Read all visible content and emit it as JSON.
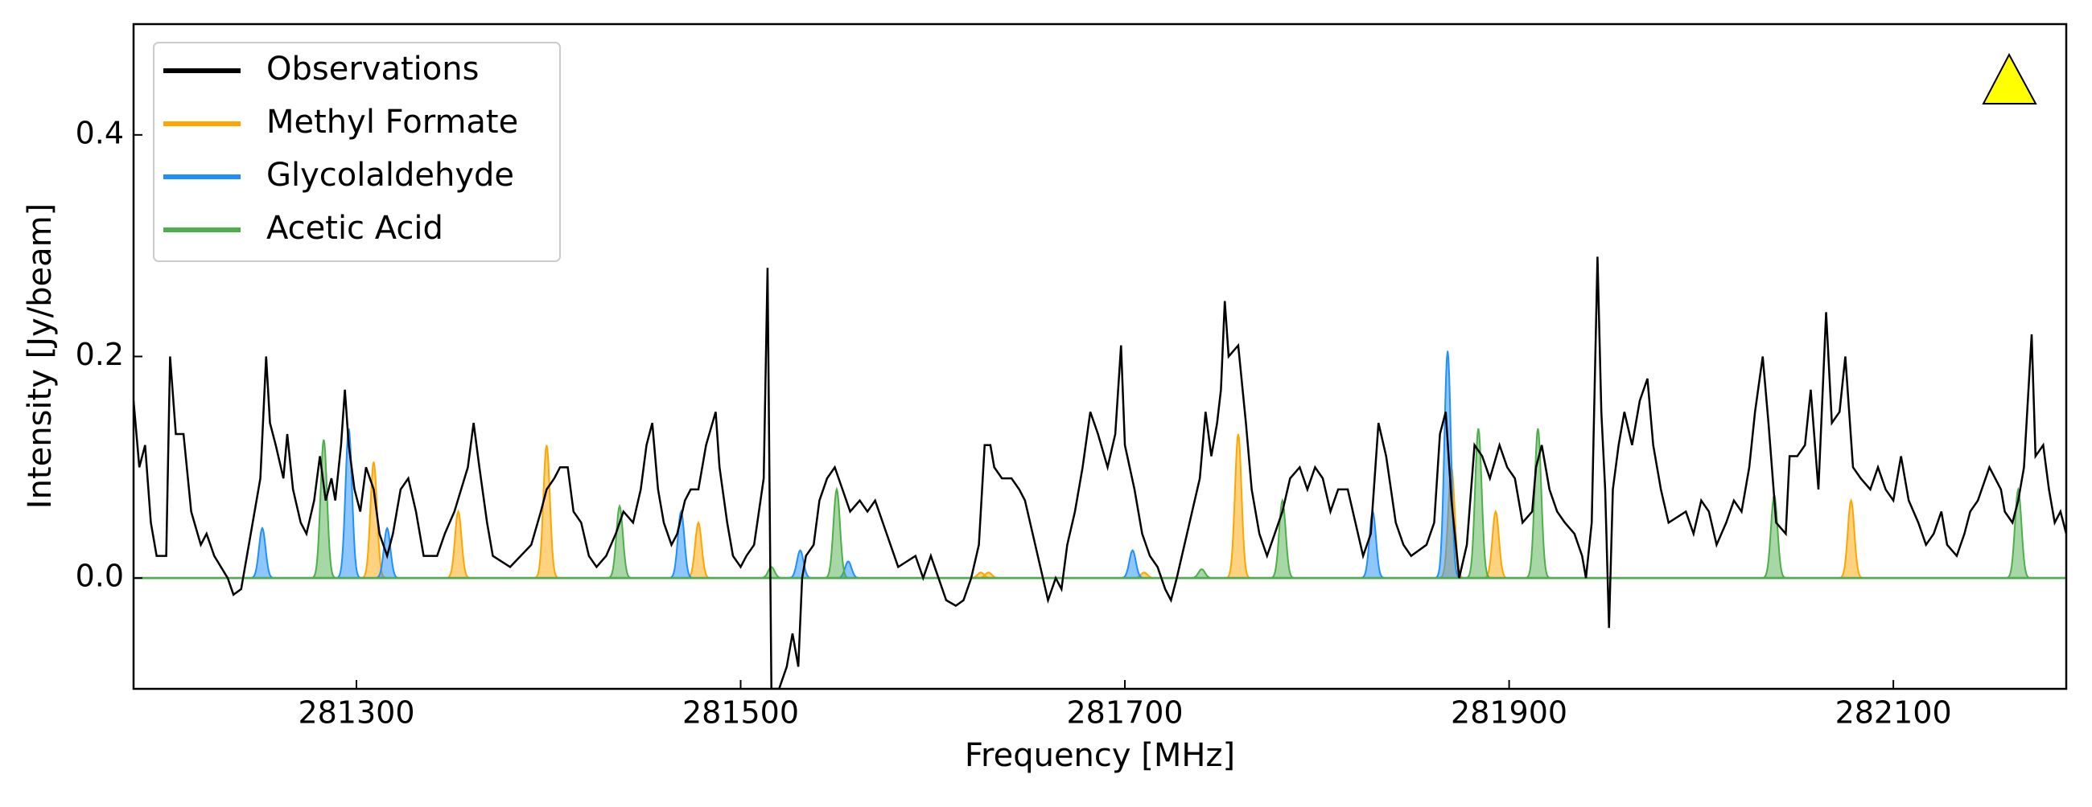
{
  "chart_data": {
    "type": "line",
    "xlabel": "Frequency [MHz]",
    "ylabel": "Intensity [Jy/beam]",
    "xlim": [
      281184,
      282190
    ],
    "ylim": [
      -0.1,
      0.5
    ],
    "xticks": [
      281300,
      281500,
      281700,
      281900,
      282100
    ],
    "yticks": [
      {
        "value": 0,
        "label": "0.0"
      },
      0.2,
      0.4
    ],
    "legend": "upper left",
    "series": [
      {
        "name": "Observations",
        "color": "#000000",
        "x": [
          281184,
          281187,
          281190,
          281193,
          281196,
          281201,
          281203,
          281206,
          281210,
          281214,
          281219,
          281222,
          281226,
          281233,
          281236,
          281240,
          281243,
          281246,
          281250,
          281253,
          281255,
          281258,
          281262,
          281264,
          281267,
          281271,
          281274,
          281278,
          281281,
          281284,
          281287,
          281289,
          281292,
          281294,
          281296,
          281299,
          281302,
          281305,
          281309,
          281312,
          281316,
          281319,
          281323,
          281327,
          281331,
          281335,
          281342,
          281346,
          281351,
          281358,
          281361,
          281364,
          281368,
          281371,
          281380,
          281391,
          281396,
          281399,
          281403,
          281406,
          281410,
          281413,
          281417,
          281421,
          281425,
          281430,
          281435,
          281439,
          281444,
          281448,
          281451,
          281454,
          281457,
          281460,
          281464,
          281467,
          281471,
          281474,
          281478,
          281482,
          281487,
          281489,
          281493,
          281496,
          281500,
          281503,
          281507,
          281512,
          281514,
          281516,
          281520,
          281524,
          281527,
          281530,
          281532,
          281534,
          281538,
          281541,
          281545,
          281549,
          281553,
          281557,
          281562,
          281566,
          281570,
          281574,
          281578,
          281582,
          281591,
          281595,
          281599,
          281603,
          281607,
          281612,
          281616,
          281620,
          281624,
          281627,
          281630,
          281632,
          281636,
          281641,
          281645,
          281648,
          281652,
          281656,
          281660,
          281664,
          281667,
          281670,
          281674,
          281678,
          281682,
          281686,
          281691,
          281695,
          281698,
          281700,
          281705,
          281709,
          281713,
          281717,
          281721,
          281724,
          281727,
          281731,
          281735,
          281739,
          281742,
          281745,
          281748,
          281750,
          281752,
          281754,
          281759,
          281763,
          281766,
          281770,
          281774,
          281778,
          281782,
          281786,
          281791,
          281795,
          281799,
          281803,
          281807,
          281811,
          281816,
          281820,
          281824,
          281828,
          281832,
          281836,
          281841,
          281845,
          281849,
          281857,
          281861,
          281864,
          281867,
          281870,
          281874,
          281878,
          281882,
          281886,
          281890,
          281895,
          281899,
          281903,
          281907,
          281912,
          281914,
          281917,
          281921,
          281925,
          281929,
          281934,
          281938,
          281940,
          281943,
          281946,
          281948,
          281950,
          281952,
          281954,
          281957,
          281960,
          281964,
          281968,
          281972,
          281975,
          281979,
          281983,
          281992,
          281996,
          282000,
          282004,
          282008,
          282013,
          282017,
          282021,
          282025,
          282028,
          282032,
          282035,
          282039,
          282044,
          282046,
          282050,
          282054,
          282057,
          282061,
          282065,
          282068,
          282072,
          282075,
          282079,
          282083,
          282088,
          282092,
          282096,
          282100,
          282104,
          282108,
          282113,
          282117,
          282121,
          282125,
          282128,
          282133,
          282137,
          282140,
          282144,
          282150,
          282156,
          282158,
          282162,
          282165,
          282168,
          282172,
          282174,
          282178,
          282181,
          282184,
          282187,
          282190
        ],
        "values": [
          0.16,
          0.1,
          0.12,
          0.05,
          0.02,
          0.02,
          0.2,
          0.13,
          0.13,
          0.06,
          0.03,
          0.04,
          0.02,
          0.0,
          -0.015,
          -0.01,
          0.02,
          0.05,
          0.09,
          0.2,
          0.14,
          0.12,
          0.09,
          0.13,
          0.08,
          0.05,
          0.04,
          0.07,
          0.11,
          0.07,
          0.09,
          0.07,
          0.12,
          0.17,
          0.12,
          0.08,
          0.06,
          0.1,
          0.08,
          0.04,
          0.02,
          0.04,
          0.08,
          0.09,
          0.06,
          0.02,
          0.02,
          0.04,
          0.06,
          0.1,
          0.14,
          0.1,
          0.05,
          0.02,
          0.01,
          0.03,
          0.06,
          0.08,
          0.09,
          0.1,
          0.1,
          0.06,
          0.05,
          0.02,
          0.01,
          0.02,
          0.04,
          0.06,
          0.05,
          0.08,
          0.12,
          0.14,
          0.08,
          0.05,
          0.03,
          0.04,
          0.07,
          0.08,
          0.08,
          0.12,
          0.15,
          0.1,
          0.05,
          0.02,
          0.01,
          0.02,
          0.03,
          0.09,
          0.28,
          -0.1,
          -0.1,
          -0.08,
          -0.05,
          -0.08,
          0.0,
          0.02,
          0.03,
          0.07,
          0.09,
          0.1,
          0.08,
          0.06,
          0.07,
          0.06,
          0.07,
          0.05,
          0.03,
          0.01,
          0.02,
          0.0,
          0.02,
          0.0,
          -0.02,
          -0.025,
          -0.02,
          0.0,
          0.03,
          0.12,
          0.12,
          0.1,
          0.09,
          0.09,
          0.08,
          0.07,
          0.04,
          0.01,
          -0.02,
          0.0,
          -0.01,
          0.03,
          0.06,
          0.1,
          0.15,
          0.13,
          0.1,
          0.13,
          0.21,
          0.12,
          0.08,
          0.04,
          0.02,
          0.01,
          -0.01,
          -0.02,
          0.0,
          0.03,
          0.06,
          0.09,
          0.15,
          0.11,
          0.14,
          0.17,
          0.25,
          0.2,
          0.21,
          0.14,
          0.08,
          0.04,
          0.02,
          0.04,
          0.06,
          0.09,
          0.1,
          0.08,
          0.1,
          0.09,
          0.06,
          0.08,
          0.08,
          0.05,
          0.02,
          0.04,
          0.14,
          0.11,
          0.05,
          0.03,
          0.02,
          0.03,
          0.05,
          0.13,
          0.15,
          0.07,
          0.0,
          0.03,
          0.12,
          0.11,
          0.09,
          0.12,
          0.1,
          0.09,
          0.05,
          0.06,
          0.1,
          0.12,
          0.08,
          0.06,
          0.05,
          0.04,
          0.02,
          0.0,
          0.05,
          0.29,
          0.15,
          0.08,
          -0.045,
          0.08,
          0.12,
          0.15,
          0.12,
          0.16,
          0.18,
          0.12,
          0.08,
          0.05,
          0.06,
          0.04,
          0.07,
          0.06,
          0.03,
          0.05,
          0.07,
          0.06,
          0.1,
          0.15,
          0.2,
          0.14,
          0.05,
          0.04,
          0.11,
          0.11,
          0.12,
          0.17,
          0.08,
          0.24,
          0.14,
          0.15,
          0.2,
          0.1,
          0.09,
          0.08,
          0.1,
          0.08,
          0.07,
          0.11,
          0.07,
          0.05,
          0.03,
          0.04,
          0.06,
          0.03,
          0.02,
          0.04,
          0.06,
          0.07,
          0.1,
          0.08,
          0.06,
          0.05,
          0.07,
          0.1,
          0.22,
          0.11,
          0.12,
          0.08,
          0.05,
          0.06,
          0.04
        ]
      },
      {
        "name": "Methyl Formate",
        "color": "#ffa500",
        "x": [
          281309,
          281353,
          281399,
          281478,
          281625,
          281629,
          281710,
          281759,
          281870,
          281893,
          282078
        ],
        "values": [
          0.105,
          0.06,
          0.12,
          0.05,
          0.005,
          0.005,
          0.005,
          0.13,
          0.1,
          0.06,
          0.07
        ]
      },
      {
        "name": "Glycolaldehyde",
        "color": "#1e8fff",
        "x": [
          281251,
          281296,
          281316,
          281469,
          281531,
          281556,
          281704,
          281829,
          281868
        ],
        "values": [
          0.045,
          0.135,
          0.045,
          0.06,
          0.025,
          0.015,
          0.025,
          0.06,
          0.205
        ]
      },
      {
        "name": "Acetic Acid",
        "color": "#4daf4a",
        "x": [
          281283,
          281437,
          281516,
          281550,
          281740,
          281782,
          281884,
          281915,
          282038,
          282165
        ],
        "values": [
          0.125,
          0.065,
          0.01,
          0.08,
          0.008,
          0.07,
          0.135,
          0.135,
          0.075,
          0.08
        ]
      }
    ]
  }
}
